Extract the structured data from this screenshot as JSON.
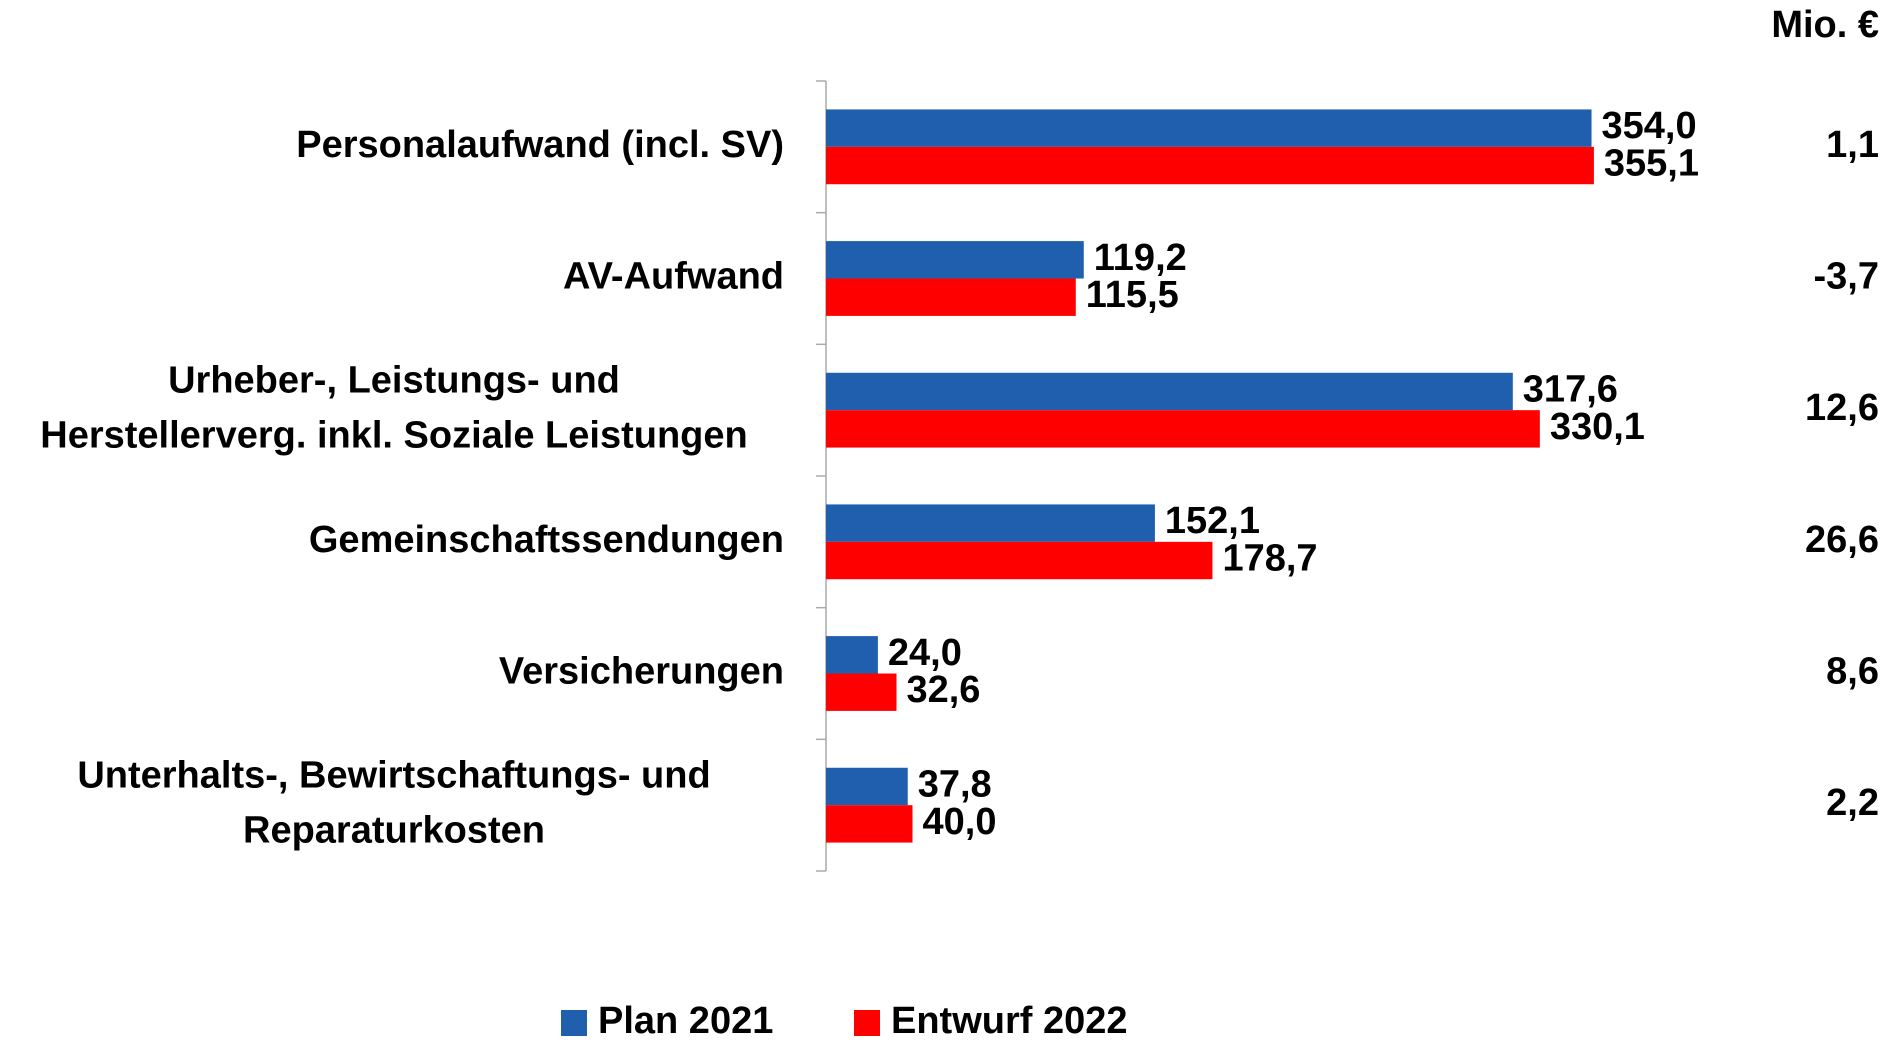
{
  "chart_data": {
    "type": "hbar",
    "unit": "Mio. €",
    "categories": [
      "Personalaufwand (incl. SV)",
      "AV-Aufwand",
      "Urheber-, Leistungs- und\nHerstellerverg. inkl. Soziale Leistungen",
      "Gemeinschaftssendungen",
      "Versicherungen",
      "Unterhalts-, Bewirtschaftungs- und\nReparaturkosten"
    ],
    "series": [
      {
        "name": "Plan 2021",
        "color": "#1f5fad",
        "values": [
          354.0,
          119.2,
          317.6,
          152.1,
          24.0,
          37.8
        ],
        "value_labels": [
          "354,0",
          "119,2",
          "317,6",
          "152,1",
          "24,0",
          "37,8"
        ]
      },
      {
        "name": "Entwurf 2022",
        "color": "#ff0000",
        "values": [
          355.1,
          115.5,
          330.1,
          178.7,
          32.6,
          40.0
        ],
        "value_labels": [
          "355,1",
          "115,5",
          "330,1",
          "178,7",
          "32,6",
          "40,0"
        ]
      }
    ],
    "differences": [
      1.1,
      -3.7,
      12.6,
      26.6,
      8.6,
      2.2
    ],
    "difference_labels": [
      "1,1",
      "-3,7",
      "12,6",
      "26,6",
      "8,6",
      "2,2"
    ],
    "xlim": [
      0,
      400
    ],
    "legend": "bottom"
  }
}
